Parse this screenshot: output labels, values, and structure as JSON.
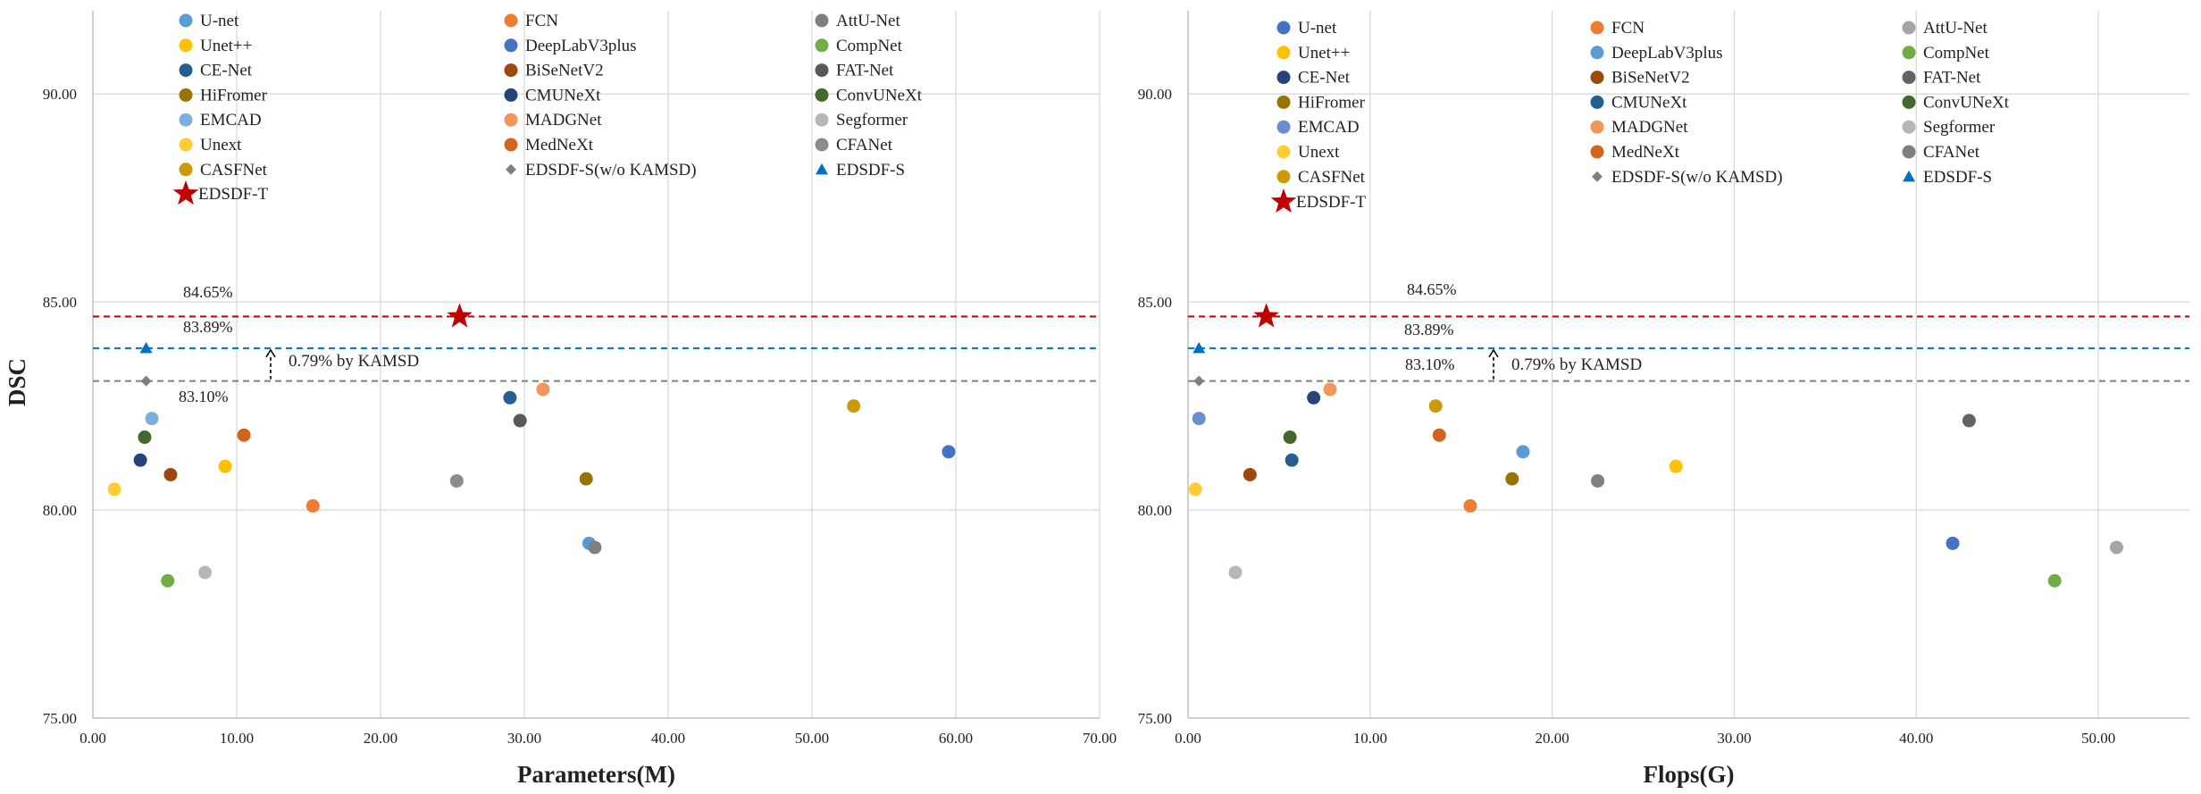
{
  "chart_data": [
    {
      "type": "scatter",
      "xlabel": "Parameters(M)",
      "ylabel": "DSC",
      "xlim": [
        0,
        70
      ],
      "ylim": [
        75,
        92
      ],
      "x_ticks": [
        "0.00",
        "10.00",
        "20.00",
        "30.00",
        "40.00",
        "50.00",
        "60.00",
        "70.00"
      ],
      "y_ticks": [
        "75.00",
        "80.00",
        "85.00",
        "90.00"
      ],
      "grid": true,
      "legend_placement": "top",
      "series": [
        {
          "name": "U-net",
          "marker": "circle",
          "color": "#5b9bd5",
          "x": 34.5,
          "y": 79.2
        },
        {
          "name": "FCN",
          "marker": "circle",
          "color": "#ed7d31",
          "x": 15.3,
          "y": 80.1
        },
        {
          "name": "AttU-Net",
          "marker": "circle",
          "color": "#7f7f7f",
          "x": 34.9,
          "y": 79.1
        },
        {
          "name": "Unet++",
          "marker": "circle",
          "color": "#ffc000",
          "x": 9.2,
          "y": 81.05
        },
        {
          "name": "DeepLabV3plus",
          "marker": "circle",
          "color": "#4472c4",
          "x": 59.5,
          "y": 81.4
        },
        {
          "name": "CompNet",
          "marker": "circle",
          "color": "#70ad47",
          "x": 5.2,
          "y": 78.3
        },
        {
          "name": "CE-Net",
          "marker": "circle",
          "color": "#255e91",
          "x": 29.0,
          "y": 82.7
        },
        {
          "name": "BiSeNetV2",
          "marker": "circle",
          "color": "#9e480e",
          "x": 5.4,
          "y": 80.85
        },
        {
          "name": "FAT-Net",
          "marker": "circle",
          "color": "#595959",
          "x": 29.7,
          "y": 82.15
        },
        {
          "name": "HiFromer",
          "marker": "circle",
          "color": "#997300",
          "x": 34.3,
          "y": 80.75
        },
        {
          "name": "CMUNeXt",
          "marker": "circle",
          "color": "#264478",
          "x": 3.3,
          "y": 81.2
        },
        {
          "name": "ConvUNeXt",
          "marker": "circle",
          "color": "#43682b",
          "x": 3.6,
          "y": 81.75
        },
        {
          "name": "EMCAD",
          "marker": "circle",
          "color": "#7cafdd",
          "x": 4.1,
          "y": 82.2
        },
        {
          "name": "MADGNet",
          "marker": "circle",
          "color": "#f1975a",
          "x": 31.3,
          "y": 82.9
        },
        {
          "name": "Segformer",
          "marker": "circle",
          "color": "#b7b7b7",
          "x": 7.8,
          "y": 78.5
        },
        {
          "name": "Unext",
          "marker": "circle",
          "color": "#ffcd33",
          "x": 1.5,
          "y": 80.5
        },
        {
          "name": "MedNeXt",
          "marker": "circle",
          "color": "#d2641e",
          "x": 10.5,
          "y": 81.8
        },
        {
          "name": "CFANet",
          "marker": "circle",
          "color": "#8c8c8c",
          "x": 25.3,
          "y": 80.7
        },
        {
          "name": "CASFNet",
          "marker": "circle",
          "color": "#cc9a06",
          "x": 52.9,
          "y": 82.5
        },
        {
          "name": "EDSDF-S(w/o KAMSD)",
          "marker": "diamond",
          "color": "#7f7f7f",
          "x": 3.7,
          "y": 83.1
        },
        {
          "name": "EDSDF-S",
          "marker": "triangle",
          "color": "#0070c0",
          "x": 3.7,
          "y": 83.89
        },
        {
          "name": "EDSDF-T",
          "marker": "star",
          "color": "#c00000",
          "x": 25.5,
          "y": 84.65
        }
      ],
      "reference_lines": [
        {
          "y": 84.65,
          "label": "84.65%",
          "color": "#c00000"
        },
        {
          "y": 83.89,
          "label": "83.89%",
          "color": "#0070c0"
        },
        {
          "y": 83.1,
          "label": "83.10%",
          "color": "#7f7f7f"
        }
      ],
      "annotation": "0.79% by KAMSD"
    },
    {
      "type": "scatter",
      "xlabel": "Flops(G)",
      "ylabel": "",
      "xlim": [
        0,
        55
      ],
      "ylim": [
        75,
        92
      ],
      "x_ticks": [
        "0.00",
        "10.00",
        "20.00",
        "30.00",
        "40.00",
        "50.00"
      ],
      "y_ticks": [
        "75.00",
        "80.00",
        "85.00",
        "90.00"
      ],
      "grid": true,
      "legend_placement": "top",
      "series": [
        {
          "name": "U-net",
          "marker": "circle",
          "color": "#4472c4",
          "x": 42.0,
          "y": 79.2
        },
        {
          "name": "FCN",
          "marker": "circle",
          "color": "#ed7d31",
          "x": 15.5,
          "y": 80.1
        },
        {
          "name": "AttU-Net",
          "marker": "circle",
          "color": "#a5a5a5",
          "x": 51.0,
          "y": 79.1
        },
        {
          "name": "Unet++",
          "marker": "circle",
          "color": "#ffc000",
          "x": 26.8,
          "y": 81.05
        },
        {
          "name": "DeepLabV3plus",
          "marker": "circle",
          "color": "#5b9bd5",
          "x": 18.4,
          "y": 81.4
        },
        {
          "name": "CompNet",
          "marker": "circle",
          "color": "#70ad47",
          "x": 47.6,
          "y": 78.3
        },
        {
          "name": "CE-Net",
          "marker": "circle",
          "color": "#264478",
          "x": 6.9,
          "y": 82.7
        },
        {
          "name": "BiSeNetV2",
          "marker": "circle",
          "color": "#9e480e",
          "x": 3.4,
          "y": 80.85
        },
        {
          "name": "FAT-Net",
          "marker": "circle",
          "color": "#636363",
          "x": 42.9,
          "y": 82.15
        },
        {
          "name": "HiFromer",
          "marker": "circle",
          "color": "#997300",
          "x": 17.8,
          "y": 80.75
        },
        {
          "name": "CMUNeXt",
          "marker": "circle",
          "color": "#255e91",
          "x": 5.7,
          "y": 81.2
        },
        {
          "name": "ConvUNeXt",
          "marker": "circle",
          "color": "#43682b",
          "x": 5.6,
          "y": 81.75
        },
        {
          "name": "EMCAD",
          "marker": "circle",
          "color": "#698ed0",
          "x": 0.6,
          "y": 82.2
        },
        {
          "name": "MADGNet",
          "marker": "circle",
          "color": "#f1975a",
          "x": 7.8,
          "y": 82.9
        },
        {
          "name": "Segformer",
          "marker": "circle",
          "color": "#b7b7b7",
          "x": 2.6,
          "y": 78.5
        },
        {
          "name": "Unext",
          "marker": "circle",
          "color": "#ffcd33",
          "x": 0.4,
          "y": 80.5
        },
        {
          "name": "MedNeXt",
          "marker": "circle",
          "color": "#d2641e",
          "x": 13.8,
          "y": 81.8
        },
        {
          "name": "CFANet",
          "marker": "circle",
          "color": "#7f7f7f",
          "x": 22.5,
          "y": 80.7
        },
        {
          "name": "CASFNet",
          "marker": "circle",
          "color": "#cc9a06",
          "x": 13.6,
          "y": 82.5
        },
        {
          "name": "EDSDF-S(w/o KAMSD)",
          "marker": "diamond",
          "color": "#7f7f7f",
          "x": 0.6,
          "y": 83.1
        },
        {
          "name": "EDSDF-S",
          "marker": "triangle",
          "color": "#0070c0",
          "x": 0.6,
          "y": 83.89
        },
        {
          "name": "EDSDF-T",
          "marker": "star",
          "color": "#c00000",
          "x": 4.3,
          "y": 84.65
        }
      ],
      "reference_lines": [
        {
          "y": 84.65,
          "label": "84.65%",
          "color": "#c00000"
        },
        {
          "y": 83.89,
          "label": "83.89%",
          "color": "#0070c0"
        },
        {
          "y": 83.1,
          "label": "83.10%",
          "color": "#7f7f7f"
        }
      ],
      "annotation": "0.79% by KAMSD"
    }
  ]
}
